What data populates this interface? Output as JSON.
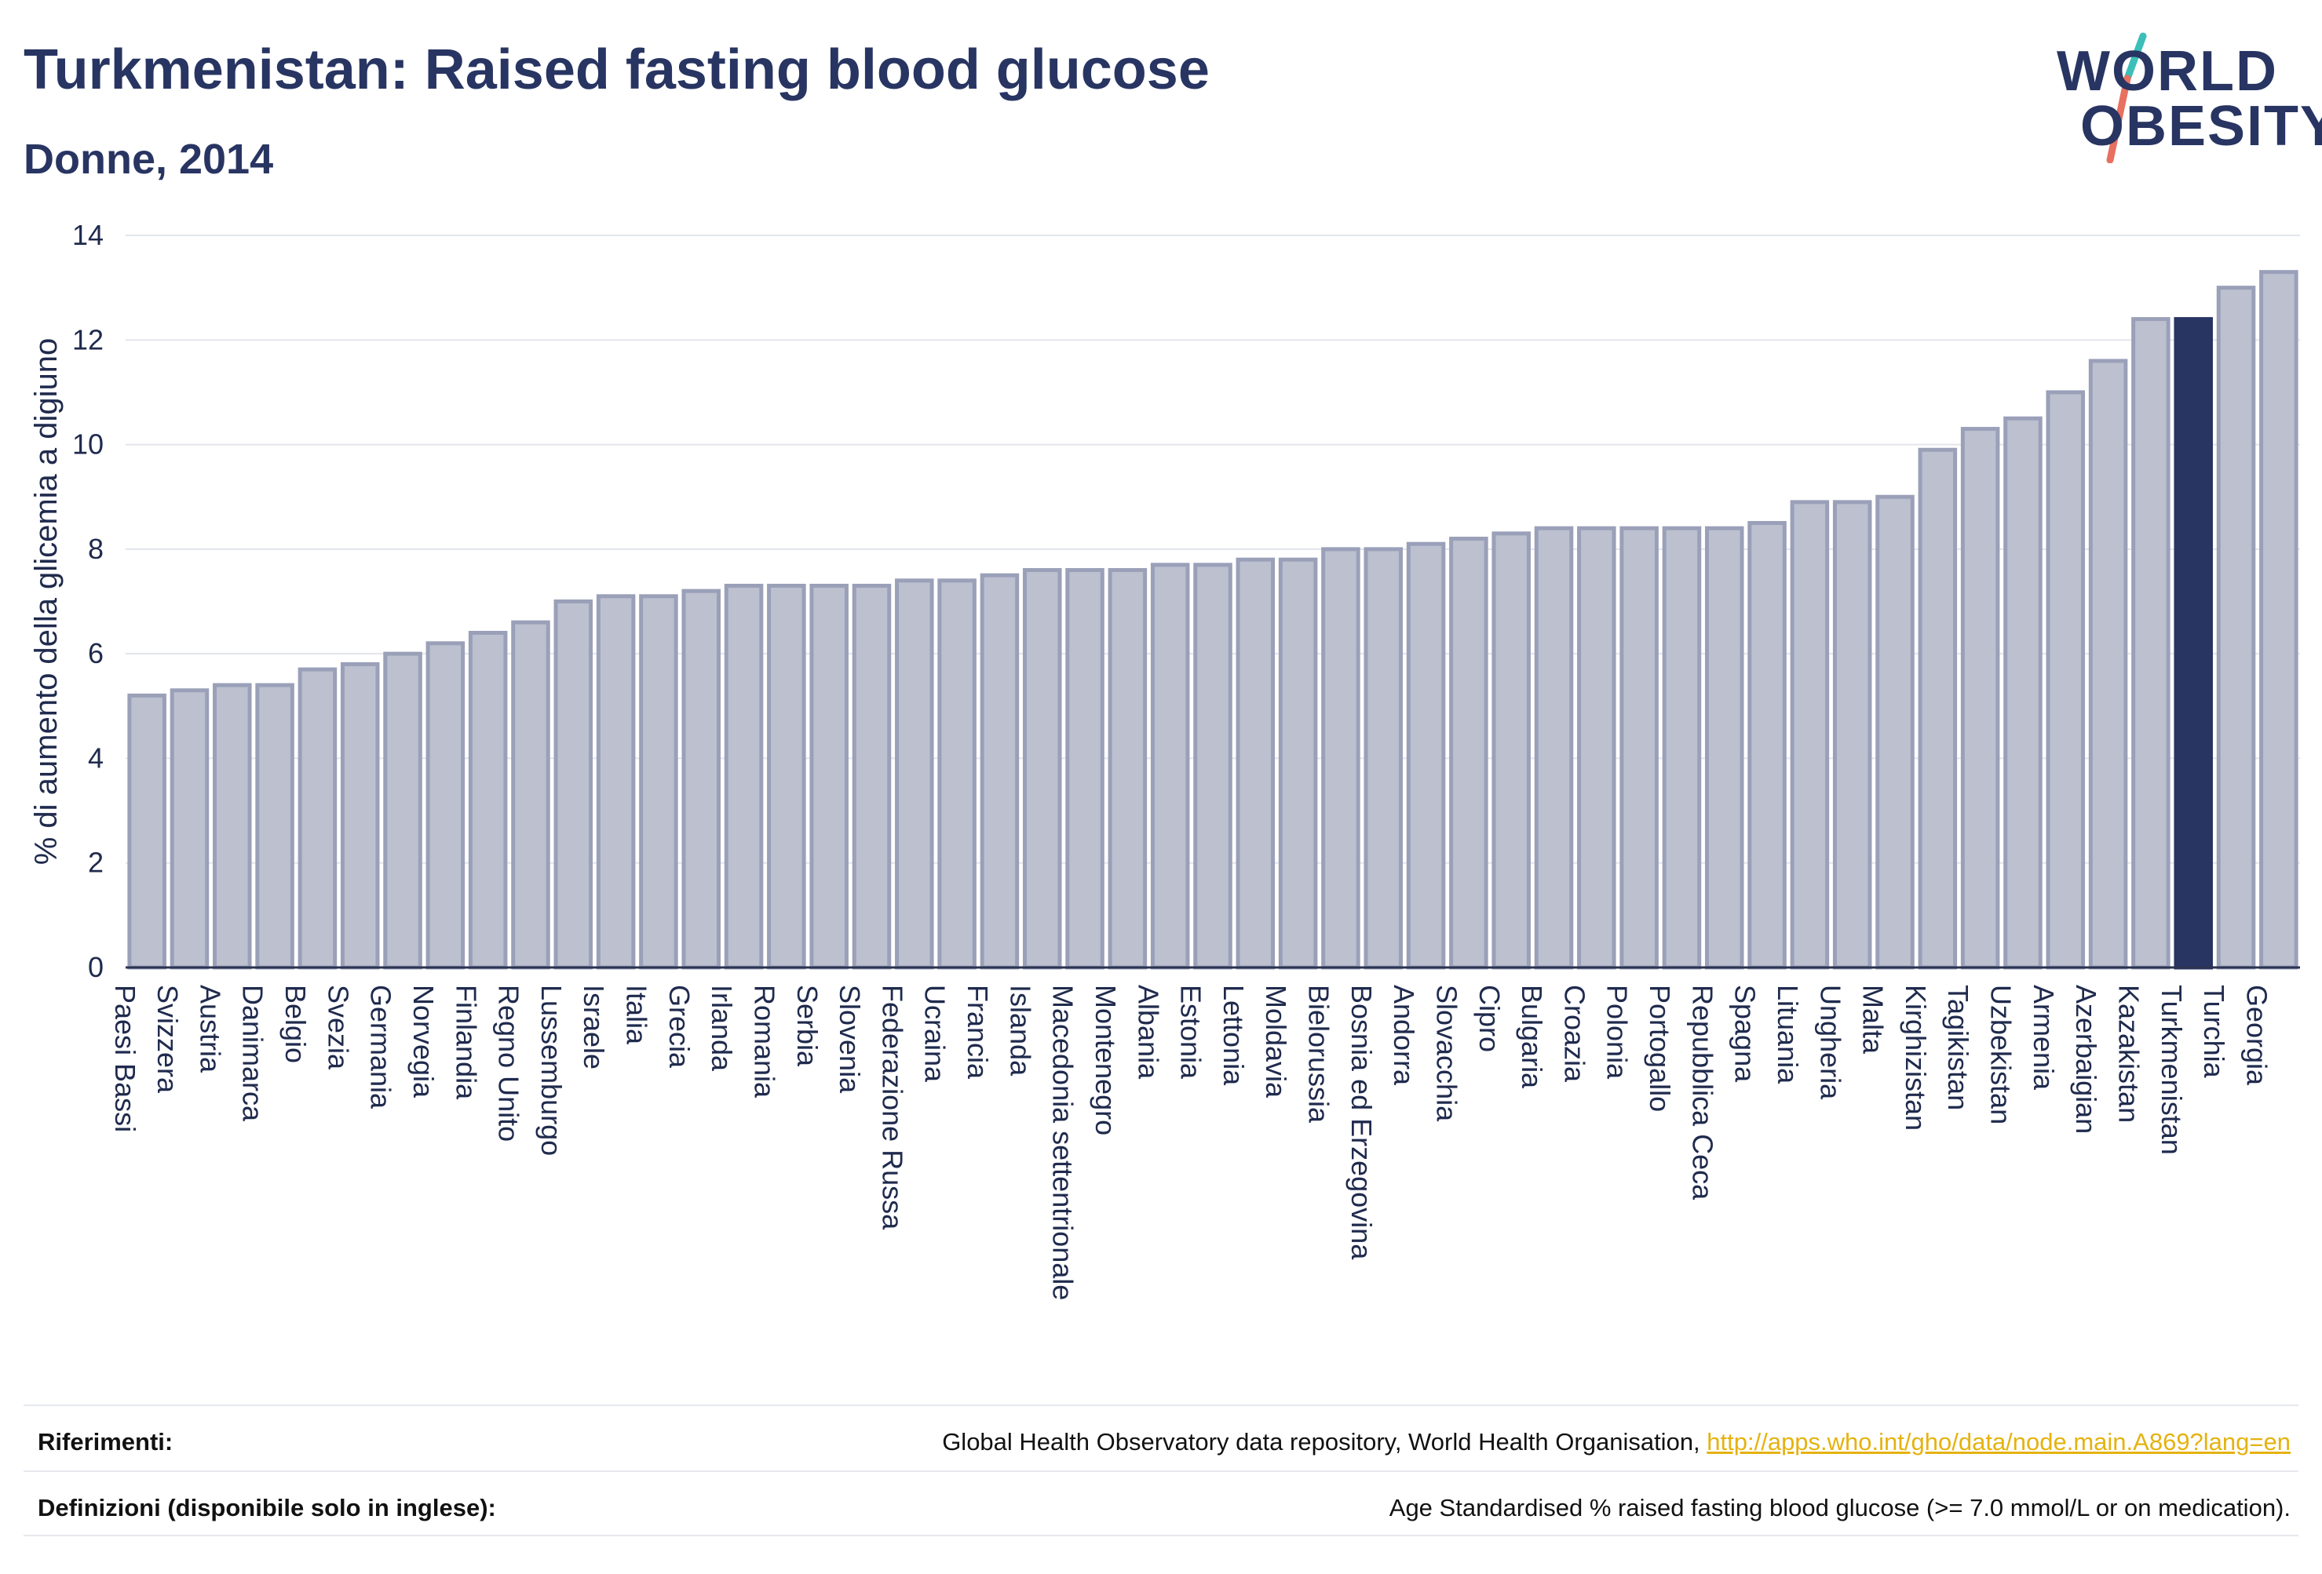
{
  "header": {
    "title": "Turkmenistan: Raised fasting blood glucose",
    "subtitle": "Donne, 2014"
  },
  "logo": {
    "line1": "WORLD",
    "line2": "OBESITY",
    "colors": {
      "text": "#283562",
      "slash_top": "#3bbfb8",
      "slash_bottom": "#e8705f"
    }
  },
  "colors": {
    "bar_fill": "#bcc0cf",
    "bar_stroke": "#9aa0b8",
    "highlight": "#283562",
    "grid": "#e3e5ec",
    "axis": "#2b3352"
  },
  "chart_data": {
    "type": "bar",
    "ylabel": "% di aumento della glicemia a digiuno",
    "ylim": [
      0,
      14
    ],
    "yticks": [
      0,
      2,
      4,
      6,
      8,
      10,
      12,
      14
    ],
    "grid": true,
    "highlight_category": "Turkmenistan",
    "categories": [
      "Paesi Bassi",
      "Svizzera",
      "Austria",
      "Danimarca",
      "Belgio",
      "Svezia",
      "Germania",
      "Norvegia",
      "Finlandia",
      "Regno Unito",
      "Lussemburgo",
      "Israele",
      "Italia",
      "Grecia",
      "Irlanda",
      "Romania",
      "Serbia",
      "Slovenia",
      "Federazione Russa",
      "Ucraina",
      "Francia",
      "Islanda",
      "Macedonia settentrionale",
      "Montenegro",
      "Albania",
      "Estonia",
      "Lettonia",
      "Moldavia",
      "Bielorussia",
      "Bosnia ed Erzegovina",
      "Andorra",
      "Slovacchia",
      "Cipro",
      "Bulgaria",
      "Croazia",
      "Polonia",
      "Portogallo",
      "Repubblica Ceca",
      "Spagna",
      "Lituania",
      "Ungheria",
      "Malta",
      "Kirghizistan",
      "Tagikistan",
      "Uzbekistan",
      "Armenia",
      "Azerbaigian",
      "Kazakistan",
      "Turkmenistan",
      "Turchia",
      "Georgia"
    ],
    "values": [
      5.2,
      5.3,
      5.4,
      5.4,
      5.7,
      5.8,
      6.0,
      6.2,
      6.4,
      6.6,
      7.0,
      7.1,
      7.1,
      7.2,
      7.3,
      7.3,
      7.3,
      7.3,
      7.4,
      7.4,
      7.5,
      7.6,
      7.6,
      7.6,
      7.7,
      7.7,
      7.8,
      7.8,
      8.0,
      8.0,
      8.1,
      8.2,
      8.3,
      8.4,
      8.4,
      8.4,
      8.4,
      8.4,
      8.5,
      8.9,
      8.9,
      9.0,
      9.9,
      10.3,
      10.5,
      11.0,
      11.6,
      12.4,
      12.4,
      13.0,
      13.3
    ]
  },
  "footer": {
    "references_label": "Riferimenti:",
    "references_text": "Global Health Observatory data repository, World Health Organisation, ",
    "references_link": "http://apps.who.int/gho/data/node.main.A869?lang=en",
    "definitions_label": "Definizioni (disponibile solo in inglese):",
    "definitions_text": "Age Standardised % raised fasting blood glucose (>= 7.0 mmol/L or on medication)."
  }
}
